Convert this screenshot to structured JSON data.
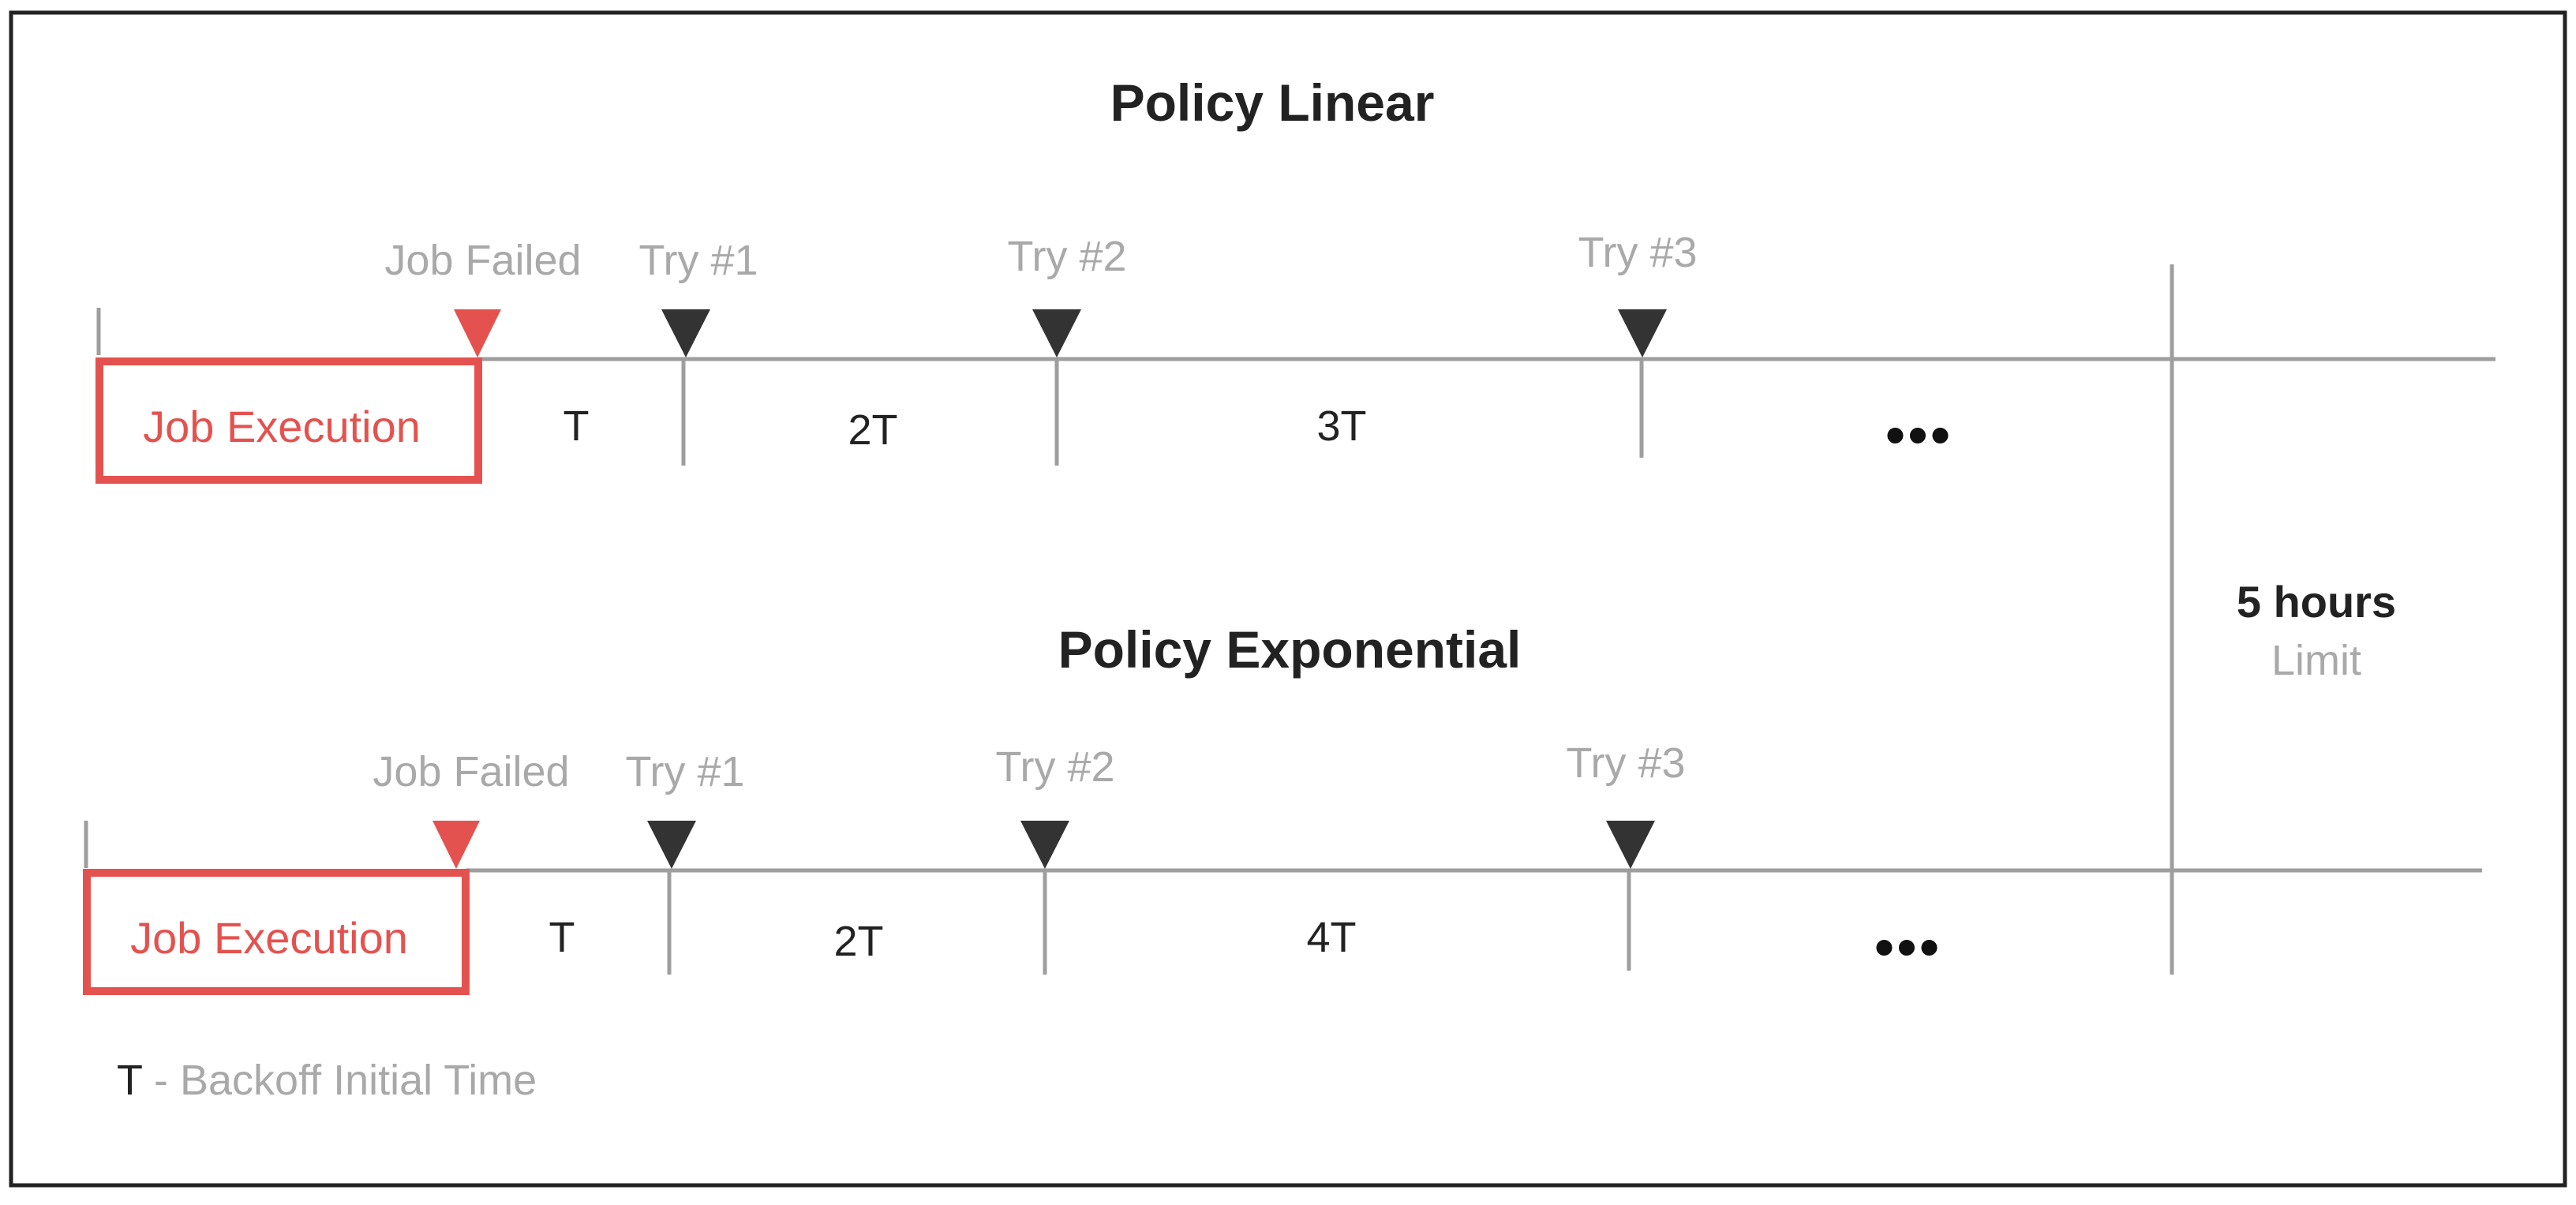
{
  "colors": {
    "accent_red": "#e4524f",
    "line_gray": "#9e9e9e",
    "marker_dark": "#333333",
    "text_gray": "#a9a9a9",
    "text_dark": "#222222"
  },
  "policies": [
    {
      "title": "Policy Linear",
      "failed_label": "Job Failed",
      "execution_label": "Job Execution",
      "tries": [
        "Try #1",
        "Try #2",
        "Try #3"
      ],
      "intervals": [
        "T",
        "2T",
        "3T"
      ],
      "ellipsis": "•••"
    },
    {
      "title": "Policy Exponential",
      "failed_label": "Job Failed",
      "execution_label": "Job Execution",
      "tries": [
        "Try #1",
        "Try #2",
        "Try #3"
      ],
      "intervals": [
        "T",
        "2T",
        "4T"
      ],
      "ellipsis": "•••"
    }
  ],
  "limit": {
    "value": "5 hours",
    "label": "Limit"
  },
  "legend": {
    "symbol": "T",
    "text": " - Backoff Initial Time"
  },
  "icons": {
    "failure_marker": "red-down-triangle",
    "try_marker": "dark-down-triangle"
  }
}
